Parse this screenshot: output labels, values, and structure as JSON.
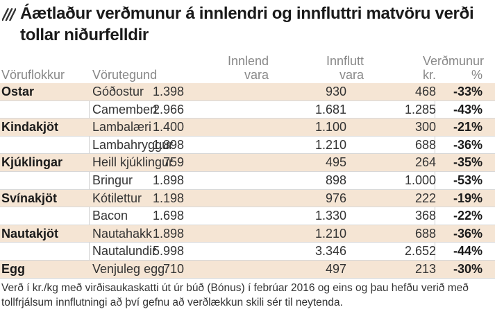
{
  "title": "Áætlaður verðmunur á innlendri og innfluttri matvöru verði tollar niðurfelldir",
  "headers": {
    "category": "Vöruflokkur",
    "type": "Vörutegund",
    "domestic_line1": "Innlend",
    "domestic_line2": "vara",
    "imported_line1": "Innflutt",
    "imported_line2": "vara",
    "diff_line1": "Verðmunur",
    "diff_kr": "kr.",
    "diff_pct": "%"
  },
  "rows": [
    {
      "category": "Ostar",
      "type": "Góðostur",
      "domestic": "1.398",
      "imported": "930",
      "diff_kr": "468",
      "diff_pct": "-33%"
    },
    {
      "category": "",
      "type": "Camembert",
      "domestic": "2.966",
      "imported": "1.681",
      "diff_kr": "1.285",
      "diff_pct": "-43%"
    },
    {
      "category": "Kindakjöt",
      "type": "Lambalæri",
      "domestic": "1.400",
      "imported": "1.100",
      "diff_kr": "300",
      "diff_pct": "-21%"
    },
    {
      "category": "",
      "type": "Lambahryggur",
      "domestic": "1.898",
      "imported": "1.210",
      "diff_kr": "688",
      "diff_pct": "-36%"
    },
    {
      "category": "Kjúklingar",
      "type": "Heill kjúklingur",
      "domestic": "759",
      "imported": "495",
      "diff_kr": "264",
      "diff_pct": "-35%"
    },
    {
      "category": "",
      "type": "Bringur",
      "domestic": "1.898",
      "imported": "898",
      "diff_kr": "1.000",
      "diff_pct": "-53%"
    },
    {
      "category": "Svínakjöt",
      "type": "Kótilettur",
      "domestic": "1.198",
      "imported": "976",
      "diff_kr": "222",
      "diff_pct": "-19%"
    },
    {
      "category": "",
      "type": "Bacon",
      "domestic": "1.698",
      "imported": "1.330",
      "diff_kr": "368",
      "diff_pct": "-22%"
    },
    {
      "category": "Nautakjöt",
      "type": "Nautahakk",
      "domestic": "1.898",
      "imported": "1.210",
      "diff_kr": "688",
      "diff_pct": "-36%"
    },
    {
      "category": "",
      "type": "Nautalundir",
      "domestic": "5.998",
      "imported": "3.346",
      "diff_kr": "2.652",
      "diff_pct": "-44%"
    },
    {
      "category": "Egg",
      "type": "Venjuleg egg",
      "domestic": "710",
      "imported": "497",
      "diff_kr": "213",
      "diff_pct": "-30%"
    }
  ],
  "footnote": "Verð í kr./kg með virðisaukaskatti út úr búð (Bónus) í febrúar 2016  og eins og þau hefðu verið með tollfrjálsum innflutningi að því gefnu að verðlækkun skili sér til neytenda.",
  "colors": {
    "row_shade": "#f5e5d4",
    "header_text": "#888888",
    "title_text": "#1a1a1a"
  }
}
